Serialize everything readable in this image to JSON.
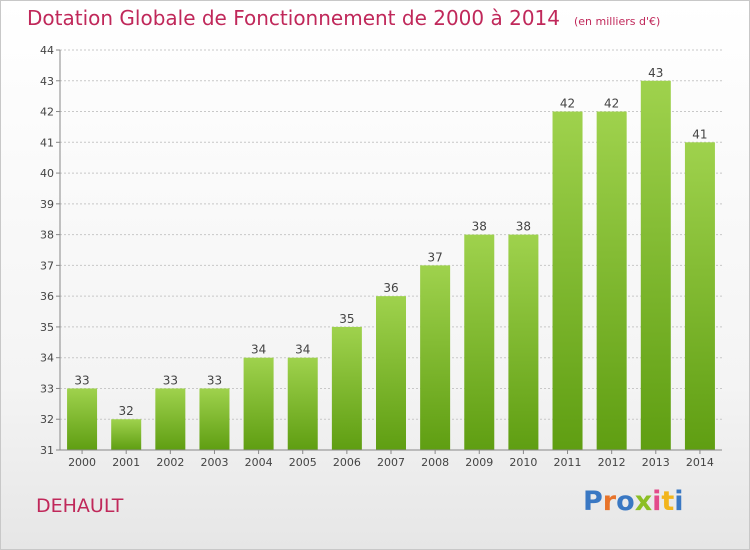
{
  "title": {
    "main": "Dotation Globale de Fonctionnement de 2000 à 2014",
    "unit": "(en milliers d'€)"
  },
  "commune": "DEHAULT",
  "logo": {
    "text": "Proxiti",
    "colors": [
      "#3a78c3",
      "#e8742a",
      "#3a78c3",
      "#8cbf26",
      "#e34b8b",
      "#f2b51c",
      "#3a78c3"
    ]
  },
  "colors": {
    "title": "#c0285a",
    "bar_top": "#9fd24d",
    "bar_bottom": "#5f9e12",
    "axis": "#888888",
    "grid": "#c8c8c8"
  },
  "chart_data": {
    "type": "bar",
    "categories": [
      "2000",
      "2001",
      "2002",
      "2003",
      "2004",
      "2005",
      "2006",
      "2007",
      "2008",
      "2009",
      "2010",
      "2011",
      "2012",
      "2013",
      "2014"
    ],
    "values": [
      33,
      32,
      33,
      33,
      34,
      34,
      35,
      36,
      37,
      38,
      38,
      42,
      42,
      43,
      41
    ],
    "data_labels": [
      "33",
      "32",
      "33",
      "33",
      "34",
      "34",
      "35",
      "36",
      "37",
      "38",
      "38",
      "42",
      "42",
      "43",
      "41"
    ],
    "ylim": [
      31,
      44
    ],
    "yticks": [
      "31",
      "32",
      "33",
      "34",
      "35",
      "36",
      "37",
      "38",
      "39",
      "40",
      "41",
      "42",
      "43",
      "44"
    ],
    "grid": true,
    "legend": "none",
    "xlabel": "",
    "ylabel": ""
  }
}
